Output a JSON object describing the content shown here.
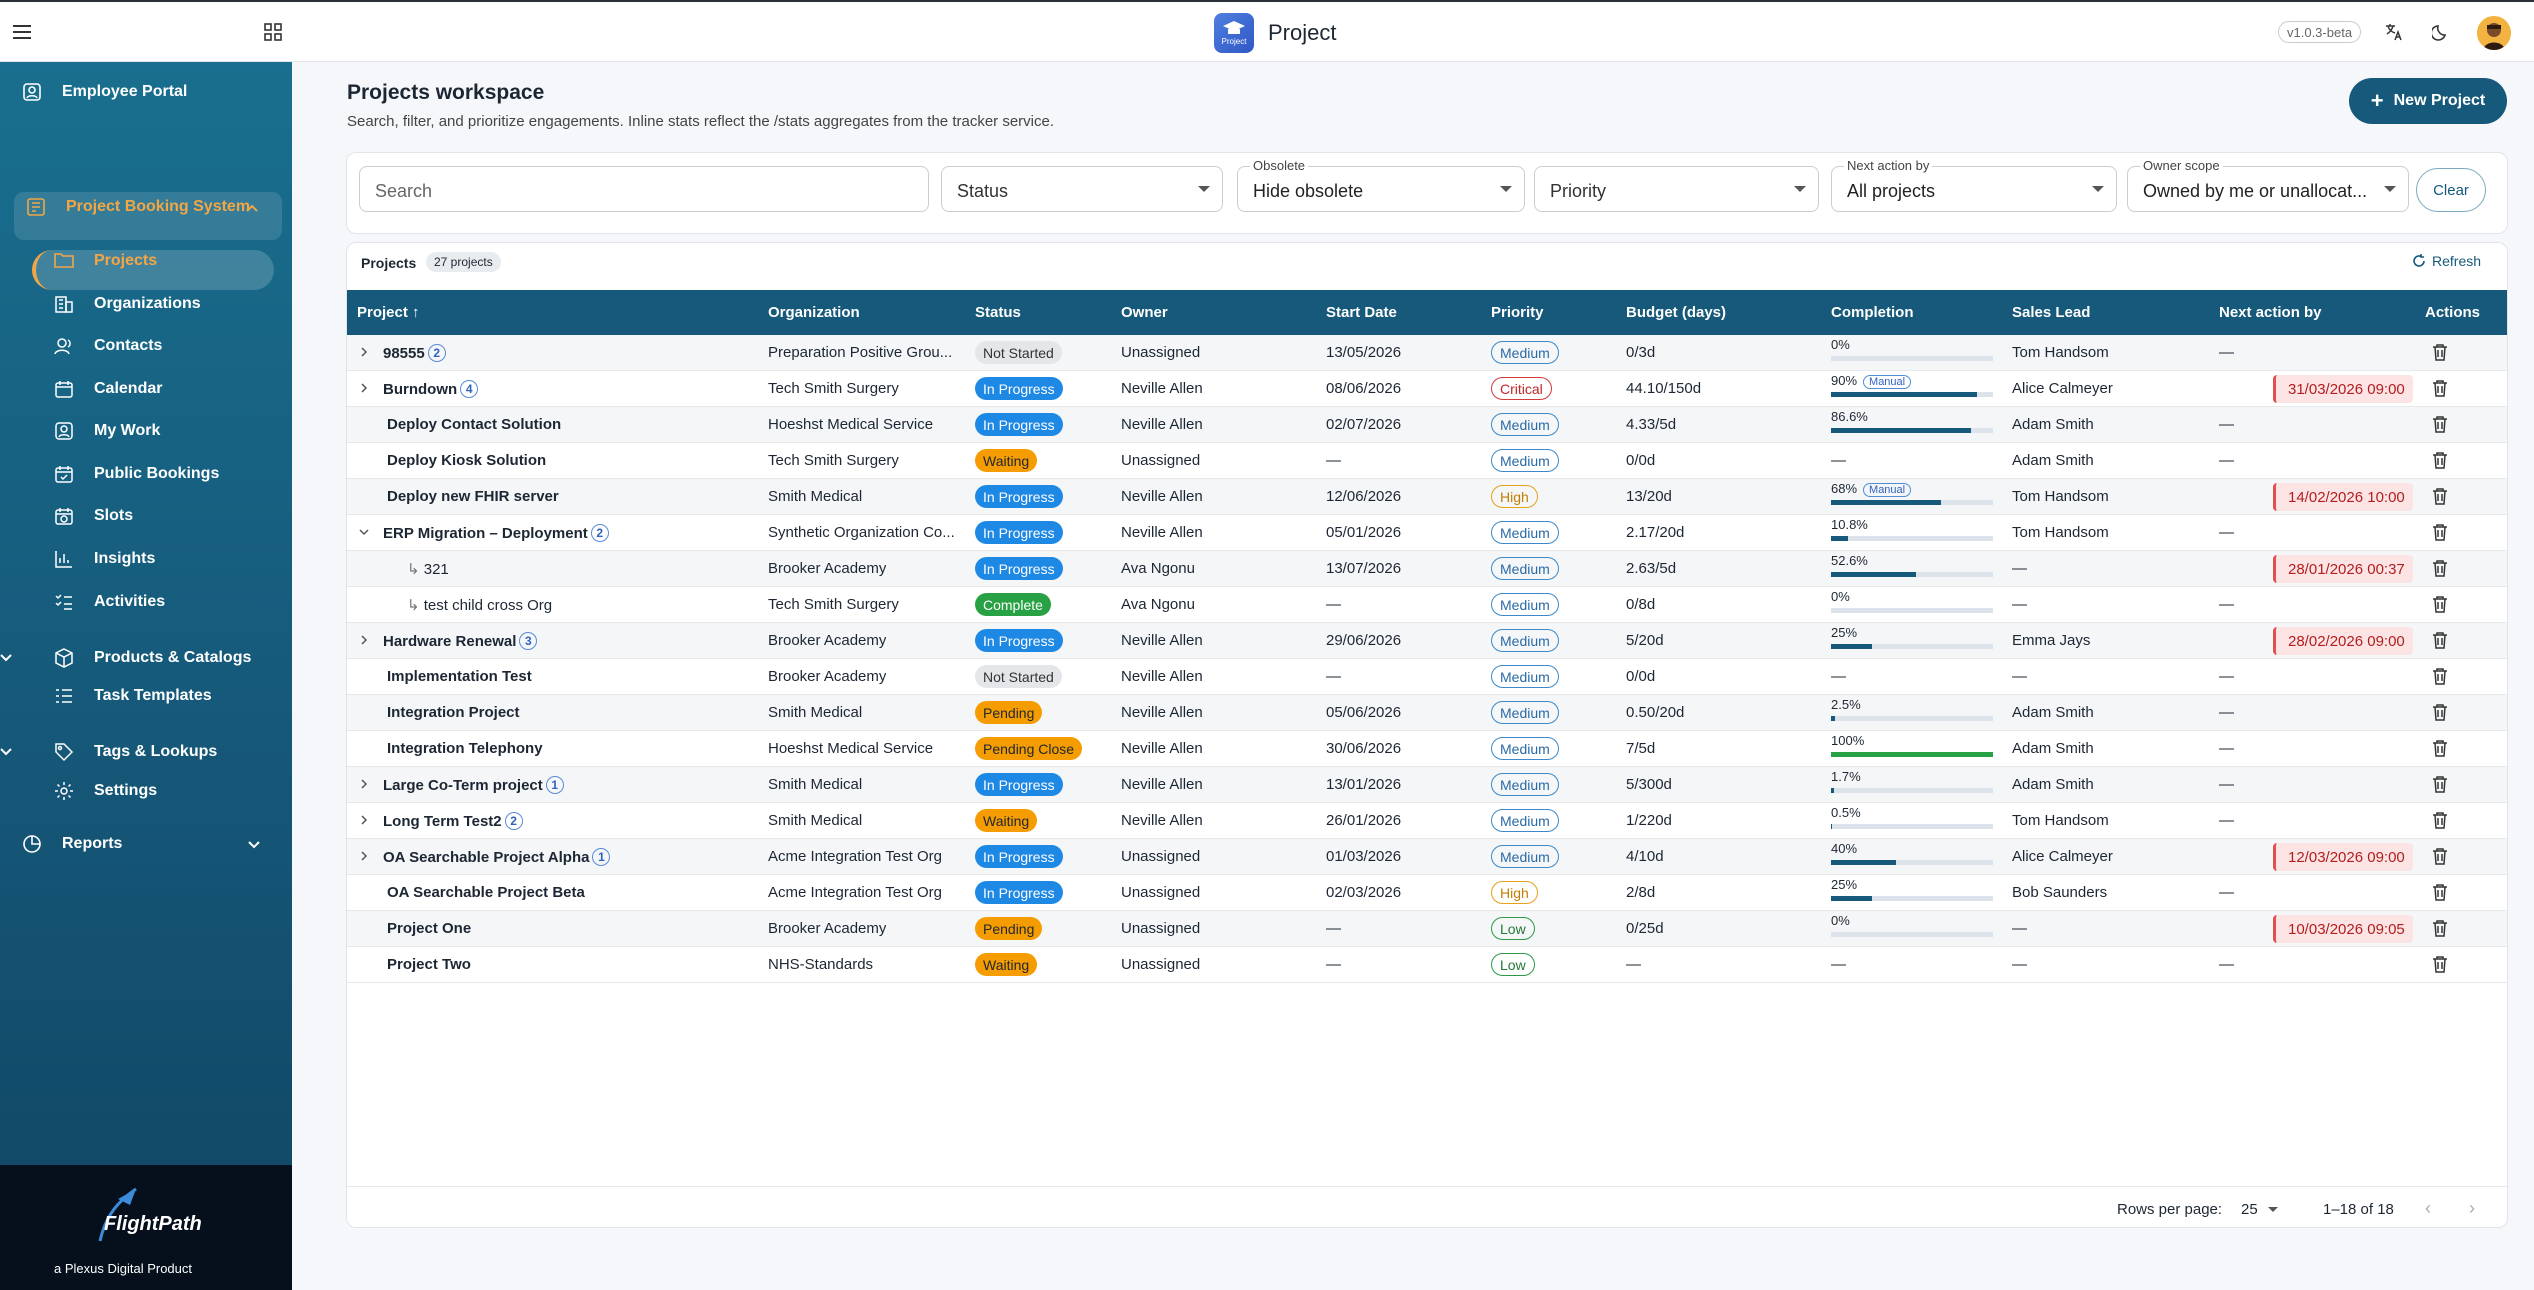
{
  "topbar": {
    "title": "Project",
    "logo_caption": "Project",
    "version": "v1.0.3-beta"
  },
  "sidebar": {
    "employee_portal": "Employee Portal",
    "project_booking": "Project Booking System",
    "sub_items": [
      "Projects",
      "Organizations",
      "Contacts",
      "Calendar",
      "My Work",
      "Public Bookings",
      "Slots",
      "Insights",
      "Activities",
      "Products & Catalogs",
      "Task Templates",
      "Tags & Lookups",
      "Settings"
    ],
    "reports": "Reports",
    "footer_brand": "FlightPath",
    "footer_tagline": "a Plexus Digital Product"
  },
  "header": {
    "title": "Projects workspace",
    "subtitle": "Search, filter, and prioritize engagements. Inline stats reflect the /stats aggregates from the tracker service.",
    "new_project": "New Project"
  },
  "filters": {
    "search_placeholder": "Search",
    "status_placeholder": "Status",
    "obsolete_label": "Obsolete",
    "obsolete_value": "Hide obsolete",
    "priority_placeholder": "Priority",
    "next_action_label": "Next action by",
    "next_action_value": "All projects",
    "owner_scope_label": "Owner scope",
    "owner_scope_value": "Owned by me or unallocat...",
    "clear": "Clear"
  },
  "table": {
    "title": "Projects",
    "count": "27 projects",
    "refresh": "Refresh",
    "columns": [
      "Project",
      "Organization",
      "Status",
      "Owner",
      "Start Date",
      "Priority",
      "Budget (days)",
      "Completion",
      "Sales Lead",
      "Next action by",
      "Actions"
    ],
    "rows": [
      {
        "name": "98555",
        "children": "2",
        "expander": "›",
        "org": "Preparation Positive Grou...",
        "status": "Not Started",
        "owner": "Unassigned",
        "start": "13/05/2026",
        "priority": "Medium",
        "budget": "0/3d",
        "completion": "0%",
        "pct": 0,
        "manual": false,
        "sales": "Tom Handsom",
        "next": "—",
        "next_alert": false
      },
      {
        "name": "Burndown",
        "children": "4",
        "expander": "›",
        "org": "Tech Smith Surgery",
        "status": "In Progress",
        "owner": "Neville Allen",
        "start": "08/06/2026",
        "priority": "Critical",
        "budget": "44.10/150d",
        "completion": "90%",
        "pct": 90,
        "manual": true,
        "sales": "Alice Calmeyer",
        "next": "31/03/2026 09:00",
        "next_alert": true
      },
      {
        "name": "Deploy Contact Solution",
        "org": "Hoeshst Medical Service",
        "status": "In Progress",
        "owner": "Neville Allen",
        "start": "02/07/2026",
        "priority": "Medium",
        "budget": "4.33/5d",
        "completion": "86.6%",
        "pct": 86.6,
        "manual": false,
        "sales": "Adam Smith",
        "next": "—",
        "next_alert": false
      },
      {
        "name": "Deploy Kiosk Solution",
        "org": "Tech Smith Surgery",
        "status": "Waiting",
        "owner": "Unassigned",
        "start": "—",
        "priority": "Medium",
        "budget": "0/0d",
        "completion": "—",
        "pct": null,
        "manual": false,
        "sales": "Adam Smith",
        "next": "—",
        "next_alert": false
      },
      {
        "name": "Deploy new FHIR server",
        "org": "Smith Medical",
        "status": "In Progress",
        "owner": "Neville Allen",
        "start": "12/06/2026",
        "priority": "High",
        "budget": "13/20d",
        "completion": "68%",
        "pct": 68,
        "manual": true,
        "sales": "Tom Handsom",
        "next": "14/02/2026 10:00",
        "next_alert": true
      },
      {
        "name": "ERP Migration – Deployment",
        "children": "2",
        "expander": "⌄",
        "org": "Synthetic Organization Co...",
        "status": "In Progress",
        "owner": "Neville Allen",
        "start": "05/01/2026",
        "priority": "Medium",
        "budget": "2.17/20d",
        "completion": "10.8%",
        "pct": 10.8,
        "manual": false,
        "sales": "Tom Handsom",
        "next": "—",
        "next_alert": false
      },
      {
        "name": "321",
        "child": true,
        "org": "Brooker Academy",
        "status": "In Progress",
        "owner": "Ava Ngonu",
        "start": "13/07/2026",
        "priority": "Medium",
        "budget": "2.63/5d",
        "completion": "52.6%",
        "pct": 52.6,
        "manual": false,
        "sales": "—",
        "next": "28/01/2026 00:37",
        "next_alert": true
      },
      {
        "name": "test child cross Org",
        "child": true,
        "org": "Tech Smith Surgery",
        "status": "Complete",
        "owner": "Ava Ngonu",
        "start": "—",
        "priority": "Medium",
        "budget": "0/8d",
        "completion": "0%",
        "pct": 0,
        "manual": false,
        "sales": "—",
        "next": "—",
        "next_alert": false
      },
      {
        "name": "Hardware Renewal",
        "children": "3",
        "expander": "›",
        "org": "Brooker Academy",
        "status": "In Progress",
        "owner": "Neville Allen",
        "start": "29/06/2026",
        "priority": "Medium",
        "budget": "5/20d",
        "completion": "25%",
        "pct": 25,
        "manual": false,
        "sales": "Emma Jays",
        "next": "28/02/2026 09:00",
        "next_alert": true
      },
      {
        "name": "Implementation Test",
        "org": "Brooker Academy",
        "status": "Not Started",
        "owner": "Neville Allen",
        "start": "—",
        "priority": "Medium",
        "budget": "0/0d",
        "completion": "—",
        "pct": null,
        "manual": false,
        "sales": "—",
        "next": "—",
        "next_alert": false
      },
      {
        "name": "Integration Project",
        "org": "Smith Medical",
        "status": "Pending",
        "owner": "Neville Allen",
        "start": "05/06/2026",
        "priority": "Medium",
        "budget": "0.50/20d",
        "completion": "2.5%",
        "pct": 2.5,
        "manual": false,
        "sales": "Adam Smith",
        "next": "—",
        "next_alert": false
      },
      {
        "name": "Integration Telephony",
        "org": "Hoeshst Medical Service",
        "status": "Pending Close",
        "owner": "Neville Allen",
        "start": "30/06/2026",
        "priority": "Medium",
        "budget": "7/5d",
        "completion": "100%",
        "pct": 100,
        "manual": false,
        "sales": "Adam Smith",
        "next": "—",
        "next_alert": false
      },
      {
        "name": "Large Co-Term project",
        "children": "1",
        "expander": "›",
        "org": "Smith Medical",
        "status": "In Progress",
        "owner": "Neville Allen",
        "start": "13/01/2026",
        "priority": "Medium",
        "budget": "5/300d",
        "completion": "1.7%",
        "pct": 1.7,
        "manual": false,
        "sales": "Adam Smith",
        "next": "—",
        "next_alert": false
      },
      {
        "name": "Long Term Test2",
        "children": "2",
        "expander": "›",
        "org": "Smith Medical",
        "status": "Waiting",
        "owner": "Neville Allen",
        "start": "26/01/2026",
        "priority": "Medium",
        "budget": "1/220d",
        "completion": "0.5%",
        "pct": 0.5,
        "manual": false,
        "sales": "Tom Handsom",
        "next": "—",
        "next_alert": false
      },
      {
        "name": "OA Searchable Project Alpha",
        "children": "1",
        "expander": "›",
        "org": "Acme Integration Test Org",
        "status": "In Progress",
        "owner": "Unassigned",
        "start": "01/03/2026",
        "priority": "Medium",
        "budget": "4/10d",
        "completion": "40%",
        "pct": 40,
        "manual": false,
        "sales": "Alice Calmeyer",
        "next": "12/03/2026 09:00",
        "next_alert": true
      },
      {
        "name": "OA Searchable Project Beta",
        "org": "Acme Integration Test Org",
        "status": "In Progress",
        "owner": "Unassigned",
        "start": "02/03/2026",
        "priority": "High",
        "budget": "2/8d",
        "completion": "25%",
        "pct": 25,
        "manual": false,
        "sales": "Bob Saunders",
        "next": "—",
        "next_alert": false
      },
      {
        "name": "Project One",
        "org": "Brooker Academy",
        "status": "Pending",
        "owner": "Unassigned",
        "start": "—",
        "priority": "Low",
        "budget": "0/25d",
        "completion": "0%",
        "pct": 0,
        "manual": false,
        "sales": "—",
        "next": "10/03/2026 09:05",
        "next_alert": true
      },
      {
        "name": "Project Two",
        "org": "NHS-Standards",
        "status": "Waiting",
        "owner": "Unassigned",
        "start": "—",
        "priority": "Low",
        "budget": "—",
        "completion": "—",
        "pct": null,
        "manual": false,
        "sales": "—",
        "next": "—",
        "next_alert": false
      }
    ],
    "manual_label": "Manual",
    "rows_per_page_label": "Rows per page:",
    "rows_per_page": "25",
    "range": "1–18 of 18"
  },
  "colors": {
    "accent": "#16597a",
    "in_progress": "#1e88e5",
    "waiting": "#f59c00",
    "complete": "#27a143",
    "not_started": "#e4e6e9",
    "critical": "#d63b3b",
    "high": "#e8a11c",
    "medium": "#3d88c9",
    "low": "#2e9a47"
  }
}
